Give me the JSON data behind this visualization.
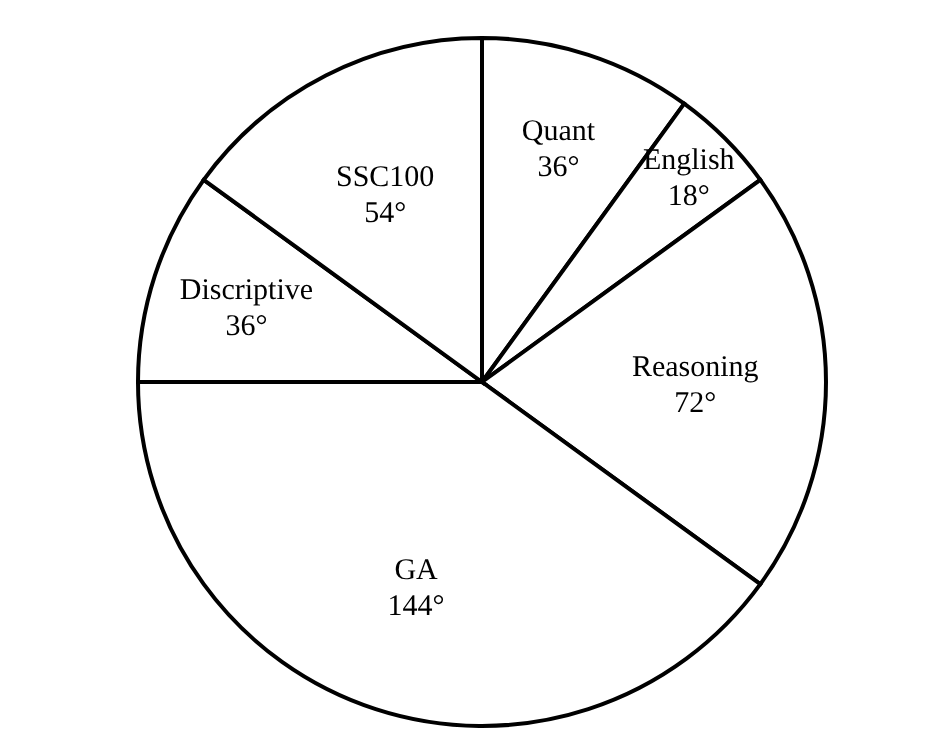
{
  "chart_data": {
    "type": "pie",
    "categories": [
      "Quant",
      "English",
      "Reasoning",
      "GA",
      "Discriptive",
      "SSC100"
    ],
    "values": [
      36,
      18,
      72,
      144,
      36,
      54
    ],
    "value_labels": [
      "36°",
      "18°",
      "72°",
      "144°",
      "36°",
      "54°"
    ],
    "colors": [
      "#ffffff",
      "#ffffff",
      "#ffffff",
      "#ffffff",
      "#ffffff",
      "#ffffff"
    ],
    "legend": false
  }
}
